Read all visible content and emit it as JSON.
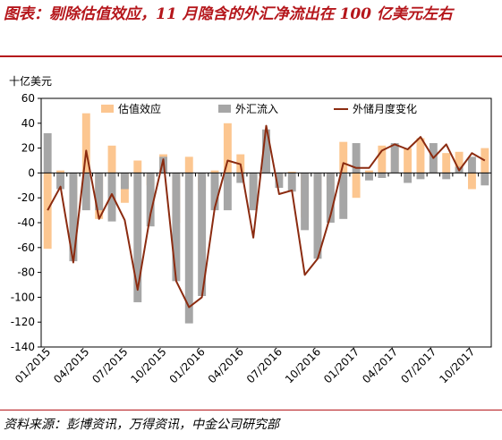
{
  "title": "图表：剔除估值效应，11 月隐含的外汇净流出在 100 亿美元左右",
  "source": "资料来源：彭博资讯，万得资讯，中金公司研究部",
  "colors": {
    "valuation": "#fcc690",
    "inflow": "#a6a6a6",
    "change": "#8b2b10",
    "accent": "#b5161b"
  },
  "chart_data": {
    "type": "bar",
    "unit_label": "十亿美元",
    "ylim": [
      -140,
      60
    ],
    "yticks": [
      -140,
      -120,
      -100,
      -80,
      -60,
      -40,
      -20,
      0,
      20,
      40,
      60
    ],
    "grid": false,
    "legend_position": "top",
    "months": [
      "01/2015",
      "02/2015",
      "03/2015",
      "04/2015",
      "05/2015",
      "06/2015",
      "07/2015",
      "08/2015",
      "09/2015",
      "10/2015",
      "11/2015",
      "12/2015",
      "01/2016",
      "02/2016",
      "03/2016",
      "04/2016",
      "05/2016",
      "06/2016",
      "07/2016",
      "08/2016",
      "09/2016",
      "10/2016",
      "11/2016",
      "12/2016",
      "01/2017",
      "02/2017",
      "03/2017",
      "04/2017",
      "05/2017",
      "06/2017",
      "07/2017",
      "08/2017",
      "09/2017",
      "10/2017",
      "11/2017"
    ],
    "xtick_labels": [
      "01/2015",
      "04/2015",
      "07/2015",
      "10/2015",
      "01/2016",
      "04/2016",
      "07/2016",
      "10/2016",
      "01/2017",
      "04/2017",
      "07/2017",
      "10/2017"
    ],
    "series": [
      {
        "name": "估值效应",
        "kind": "bar",
        "values": [
          -61,
          2,
          -47,
          48,
          -37,
          22,
          -24,
          10,
          -10,
          15,
          -40,
          13,
          -14,
          2,
          40,
          15,
          -22,
          3,
          -5,
          1,
          -36,
          -23,
          -10,
          25,
          -20,
          2,
          22,
          23,
          20,
          28,
          17,
          16,
          17,
          -13,
          20
        ]
      },
      {
        "name": "外汇流入",
        "kind": "bar",
        "values": [
          32,
          -13,
          -71,
          -30,
          -30,
          -39,
          -13,
          -104,
          -43,
          13,
          -87,
          -121,
          -99,
          -30,
          -30,
          -8,
          -30,
          35,
          -12,
          -15,
          -46,
          -69,
          -40,
          -37,
          24,
          -6,
          -4,
          24,
          -8,
          -5,
          24,
          -5,
          5,
          13,
          -10
        ]
      },
      {
        "name": "外储月度变化",
        "kind": "line",
        "values": [
          -30,
          -11,
          -72,
          18,
          -37,
          -17,
          -38,
          -94,
          -33,
          11,
          -87,
          -108,
          -100,
          -28,
          10,
          7,
          -52,
          38,
          -17,
          -14,
          -82,
          -69,
          -34,
          8,
          4,
          4,
          18,
          23,
          19,
          29,
          12,
          23,
          2,
          16,
          10
        ]
      }
    ]
  }
}
